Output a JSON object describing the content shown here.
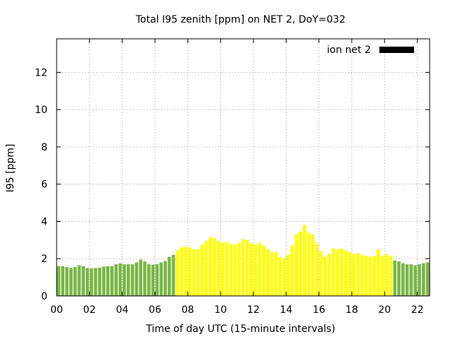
{
  "chart_data": {
    "type": "bar",
    "title": "Total I95 zenith [ppm] on NET 2, DoY=032",
    "xlabel": "Time of day UTC (15-minute intervals)",
    "ylabel": "I95 [ppm]",
    "ylim": [
      0,
      13.8
    ],
    "xlim_hours": [
      0,
      22.75
    ],
    "x_ticks": [
      "00",
      "02",
      "04",
      "06",
      "08",
      "10",
      "12",
      "14",
      "16",
      "18",
      "20",
      "22"
    ],
    "y_ticks": [
      "0",
      "2",
      "4",
      "6",
      "8",
      "10",
      "12"
    ],
    "grid": true,
    "legend": {
      "position": "top-right",
      "label": "ion net 2",
      "color": "#000000"
    },
    "colors": {
      "low": "#7ab648",
      "high": "#ffff00"
    },
    "series": [
      {
        "name": "ion net 2",
        "start_hour": 0,
        "interval_hours": 0.25,
        "values": [
          1.6,
          1.6,
          1.55,
          1.5,
          1.55,
          1.65,
          1.6,
          1.5,
          1.48,
          1.5,
          1.52,
          1.58,
          1.6,
          1.6,
          1.7,
          1.75,
          1.7,
          1.7,
          1.7,
          1.8,
          1.95,
          1.85,
          1.7,
          1.68,
          1.7,
          1.8,
          1.88,
          2.1,
          2.2,
          2.45,
          2.6,
          2.65,
          2.6,
          2.5,
          2.5,
          2.75,
          2.95,
          3.15,
          3.1,
          2.95,
          2.85,
          2.9,
          2.8,
          2.75,
          2.85,
          3.05,
          3.0,
          2.85,
          2.75,
          2.85,
          2.7,
          2.5,
          2.35,
          2.35,
          2.1,
          2.0,
          2.2,
          2.7,
          3.3,
          3.45,
          3.8,
          3.4,
          3.3,
          2.8,
          2.4,
          2.1,
          2.25,
          2.55,
          2.5,
          2.55,
          2.45,
          2.35,
          2.25,
          2.3,
          2.2,
          2.15,
          2.1,
          2.15,
          2.5,
          2.15,
          2.25,
          2.15,
          1.9,
          1.85,
          1.75,
          1.7,
          1.7,
          1.65,
          1.7,
          1.75,
          1.8
        ],
        "categories": [
          "low",
          "low",
          "low",
          "low",
          "low",
          "low",
          "low",
          "low",
          "low",
          "low",
          "low",
          "low",
          "low",
          "low",
          "low",
          "low",
          "low",
          "low",
          "low",
          "low",
          "low",
          "low",
          "low",
          "low",
          "low",
          "low",
          "low",
          "low",
          "low",
          "high",
          "high",
          "high",
          "high",
          "high",
          "high",
          "high",
          "high",
          "high",
          "high",
          "high",
          "high",
          "high",
          "high",
          "high",
          "high",
          "high",
          "high",
          "high",
          "high",
          "high",
          "high",
          "high",
          "high",
          "high",
          "high",
          "high",
          "high",
          "high",
          "high",
          "high",
          "high",
          "high",
          "high",
          "high",
          "high",
          "high",
          "high",
          "high",
          "high",
          "high",
          "high",
          "high",
          "high",
          "high",
          "high",
          "high",
          "high",
          "high",
          "high",
          "high",
          "high",
          "high",
          "low",
          "low",
          "low",
          "low",
          "low",
          "low",
          "low",
          "low",
          "low"
        ]
      }
    ]
  }
}
